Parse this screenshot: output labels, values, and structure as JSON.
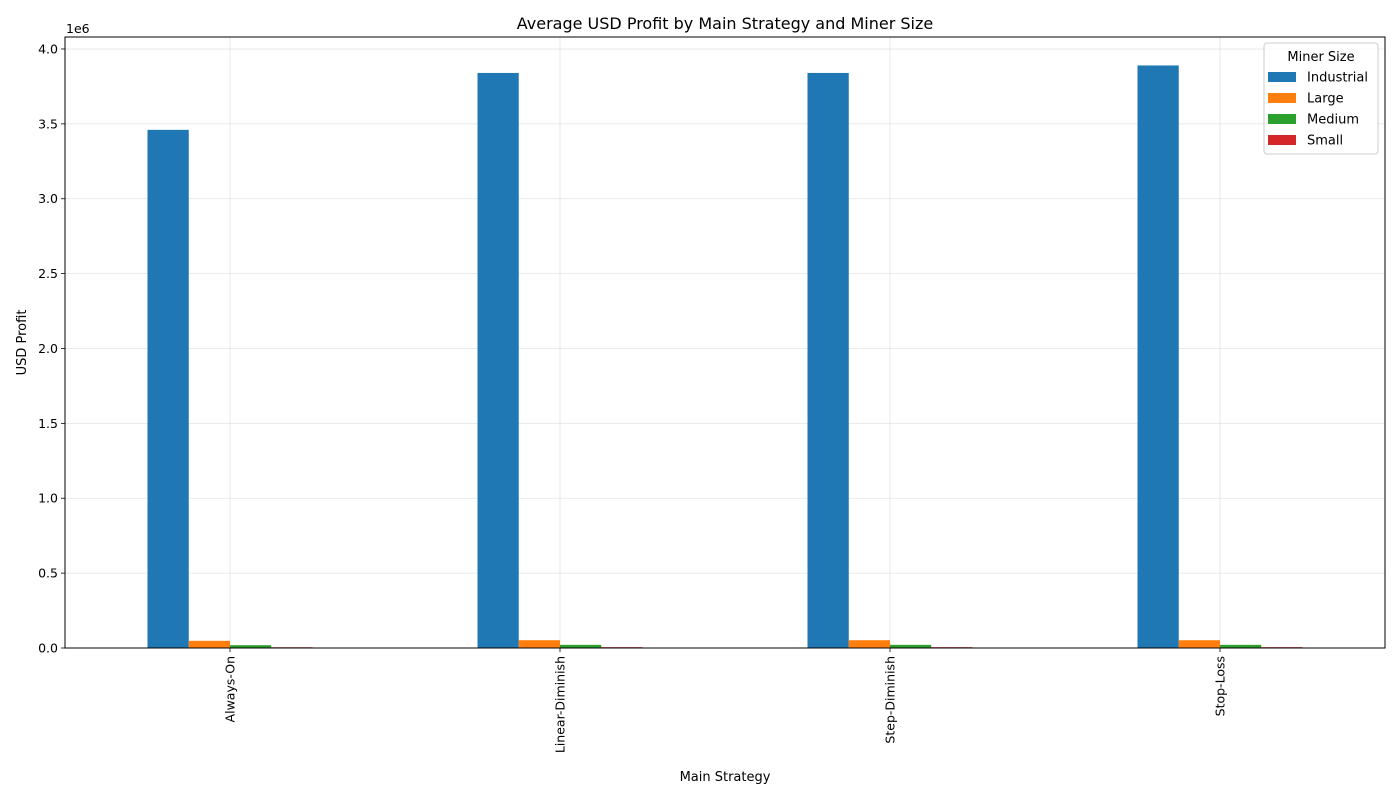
{
  "chart_data": {
    "type": "bar",
    "title": "Average USD Profit by Main Strategy and Miner Size",
    "xlabel": "Main Strategy",
    "ylabel": "USD Profit",
    "y_offset_label": "1e6",
    "categories": [
      "Always-On",
      "Linear-Diminish",
      "Step-Diminish",
      "Stop-Loss"
    ],
    "ylim": [
      0,
      4080000
    ],
    "y_ticks": [
      0,
      500000,
      1000000,
      1500000,
      2000000,
      2500000,
      3000000,
      3500000,
      4000000
    ],
    "y_tick_labels": [
      "0.0",
      "0.5",
      "1.0",
      "1.5",
      "2.0",
      "2.5",
      "3.0",
      "3.5",
      "4.0"
    ],
    "grid": true,
    "legend": {
      "title": "Miner Size",
      "placement": "top-right"
    },
    "series": [
      {
        "name": "Industrial",
        "color": "#1f77b4",
        "values": [
          3460000,
          3840000,
          3840000,
          3890000
        ]
      },
      {
        "name": "Large",
        "color": "#ff7f0e",
        "values": [
          48000,
          52000,
          52000,
          52000
        ]
      },
      {
        "name": "Medium",
        "color": "#2ca02c",
        "values": [
          19000,
          21000,
          21000,
          21000
        ]
      },
      {
        "name": "Small",
        "color": "#d62728",
        "values": [
          5000,
          5500,
          5500,
          5500
        ]
      }
    ]
  }
}
